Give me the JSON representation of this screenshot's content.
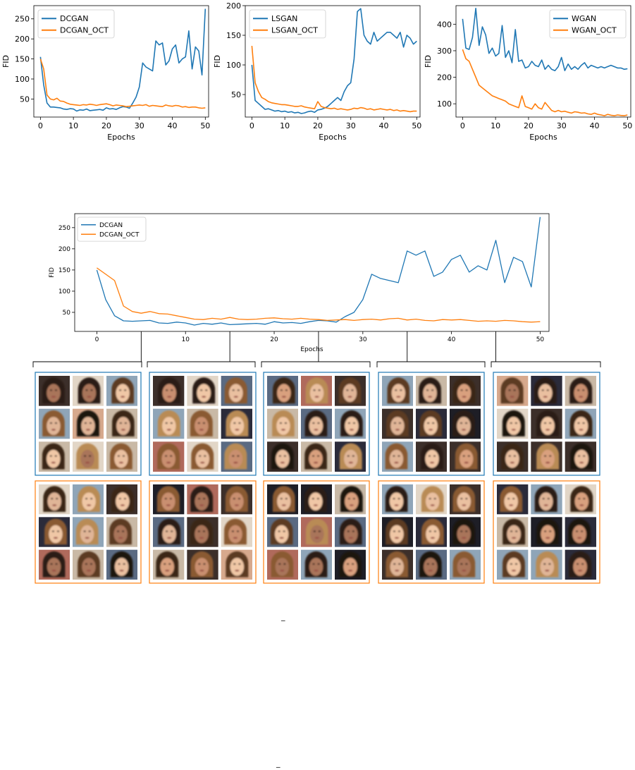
{
  "chart_data": [
    {
      "type": "line",
      "xlabel": "Epochs",
      "ylabel": "FID",
      "xlim": [
        -2,
        51
      ],
      "ylim": [
        5,
        283
      ],
      "xticks": [
        0,
        10,
        20,
        30,
        40,
        50
      ],
      "yticks": [
        50,
        100,
        150,
        200,
        250
      ],
      "grid": false,
      "legend": "top-left",
      "series": [
        {
          "name": "DCGAN",
          "color": "#1f77b4",
          "values": [
            155,
            85,
            40,
            30,
            30,
            29,
            28,
            25,
            24,
            26,
            25,
            20,
            23,
            22,
            25,
            21,
            22,
            23,
            24,
            22,
            28,
            25,
            26,
            24,
            28,
            31,
            30,
            27,
            40,
            55,
            80,
            140,
            130,
            125,
            120,
            195,
            185,
            190,
            135,
            145,
            175,
            185,
            140,
            150,
            155,
            220,
            125,
            180,
            170,
            110,
            275
          ]
        },
        {
          "name": "DCGAN_OCT",
          "color": "#ff7f0e",
          "values": [
            150,
            125,
            60,
            50,
            48,
            52,
            45,
            44,
            40,
            37,
            36,
            35,
            34,
            36,
            35,
            37,
            36,
            34,
            36,
            37,
            38,
            36,
            33,
            35,
            34,
            33,
            31,
            32,
            33,
            34,
            35,
            34,
            36,
            32,
            34,
            33,
            32,
            31,
            35,
            33,
            32,
            34,
            33,
            30,
            31,
            29,
            30,
            30,
            28,
            27,
            28
          ]
        }
      ]
    },
    {
      "type": "line",
      "xlabel": "Epochs",
      "ylabel": "FID",
      "xlim": [
        -2,
        51
      ],
      "ylim": [
        12,
        200
      ],
      "xticks": [
        0,
        10,
        20,
        30,
        40,
        50
      ],
      "yticks": [
        50,
        100,
        150,
        200
      ],
      "grid": false,
      "legend": "top-left",
      "series": [
        {
          "name": "LSGAN",
          "color": "#1f77b4",
          "values": [
            100,
            40,
            35,
            30,
            25,
            26,
            24,
            22,
            23,
            21,
            22,
            20,
            21,
            19,
            20,
            18,
            19,
            21,
            22,
            20,
            24,
            25,
            27,
            30,
            35,
            40,
            45,
            40,
            55,
            65,
            70,
            110,
            190,
            195,
            150,
            140,
            135,
            155,
            140,
            145,
            150,
            155,
            155,
            150,
            145,
            155,
            130,
            150,
            145,
            135,
            140
          ]
        },
        {
          "name": "LSGAN_OCT",
          "color": "#ff7f0e",
          "values": [
            132,
            70,
            55,
            45,
            42,
            38,
            36,
            35,
            34,
            33,
            33,
            32,
            31,
            30,
            30,
            31,
            29,
            28,
            27,
            26,
            38,
            30,
            28,
            27,
            26,
            27,
            25,
            26,
            25,
            24,
            25,
            27,
            26,
            28,
            27,
            25,
            26,
            24,
            25,
            26,
            25,
            24,
            25,
            23,
            24,
            22,
            23,
            22,
            21,
            22,
            22
          ]
        }
      ]
    },
    {
      "type": "line",
      "xlabel": "Epochs",
      "ylabel": "FID",
      "xlim": [
        -2,
        51
      ],
      "ylim": [
        50,
        470
      ],
      "xticks": [
        0,
        10,
        20,
        30,
        40,
        50
      ],
      "yticks": [
        100,
        200,
        300,
        400
      ],
      "grid": false,
      "legend": "top-right",
      "series": [
        {
          "name": "WGAN",
          "color": "#1f77b4",
          "values": [
            420,
            310,
            305,
            350,
            460,
            320,
            390,
            360,
            290,
            310,
            280,
            290,
            395,
            275,
            300,
            255,
            380,
            260,
            265,
            235,
            240,
            260,
            245,
            240,
            265,
            230,
            245,
            230,
            225,
            240,
            275,
            225,
            250,
            230,
            240,
            230,
            245,
            255,
            235,
            245,
            240,
            235,
            240,
            235,
            240,
            245,
            240,
            235,
            235,
            230,
            232
          ]
        },
        {
          "name": "WGAN_OCT",
          "color": "#ff7f0e",
          "values": [
            305,
            270,
            260,
            230,
            200,
            170,
            160,
            150,
            140,
            130,
            125,
            120,
            115,
            110,
            100,
            95,
            90,
            85,
            130,
            90,
            85,
            80,
            100,
            85,
            80,
            105,
            90,
            75,
            70,
            75,
            70,
            72,
            68,
            65,
            70,
            68,
            65,
            66,
            62,
            60,
            65,
            60,
            58,
            55,
            60,
            57,
            55,
            58,
            56,
            55,
            58
          ]
        }
      ]
    },
    {
      "type": "line",
      "xlabel": "Epochs",
      "ylabel": "FID",
      "xlim": [
        -2.5,
        51
      ],
      "ylim": [
        5,
        283
      ],
      "xticks": [
        0,
        10,
        20,
        30,
        40,
        50
      ],
      "yticks": [
        50,
        100,
        150,
        200,
        250
      ],
      "grid": false,
      "legend": "top-left",
      "series": [
        {
          "name": "DCGAN",
          "color": "#1f77b4",
          "values": [
            150,
            80,
            42,
            30,
            29,
            30,
            31,
            25,
            24,
            27,
            25,
            20,
            24,
            22,
            25,
            21,
            22,
            23,
            24,
            22,
            28,
            25,
            26,
            24,
            28,
            31,
            30,
            27,
            40,
            50,
            80,
            140,
            130,
            125,
            120,
            195,
            185,
            195,
            135,
            145,
            175,
            185,
            145,
            160,
            150,
            220,
            120,
            180,
            170,
            110,
            275
          ]
        },
        {
          "name": "DCGAN_OCT",
          "color": "#ff7f0e",
          "values": [
            155,
            140,
            125,
            65,
            52,
            48,
            52,
            47,
            46,
            42,
            38,
            34,
            33,
            36,
            34,
            38,
            34,
            33,
            34,
            36,
            37,
            35,
            34,
            36,
            34,
            33,
            31,
            32,
            33,
            31,
            33,
            34,
            32,
            35,
            36,
            32,
            34,
            31,
            30,
            33,
            32,
            33,
            31,
            29,
            30,
            29,
            31,
            30,
            28,
            27,
            28
          ]
        }
      ]
    }
  ],
  "figure": {
    "snapshot_epochs": [
      5,
      15,
      25,
      35,
      45
    ],
    "panel_colors": {
      "top": "#1f77b4",
      "bottom": "#ff7f0e"
    },
    "stray_marks": [
      "_",
      "_"
    ]
  }
}
